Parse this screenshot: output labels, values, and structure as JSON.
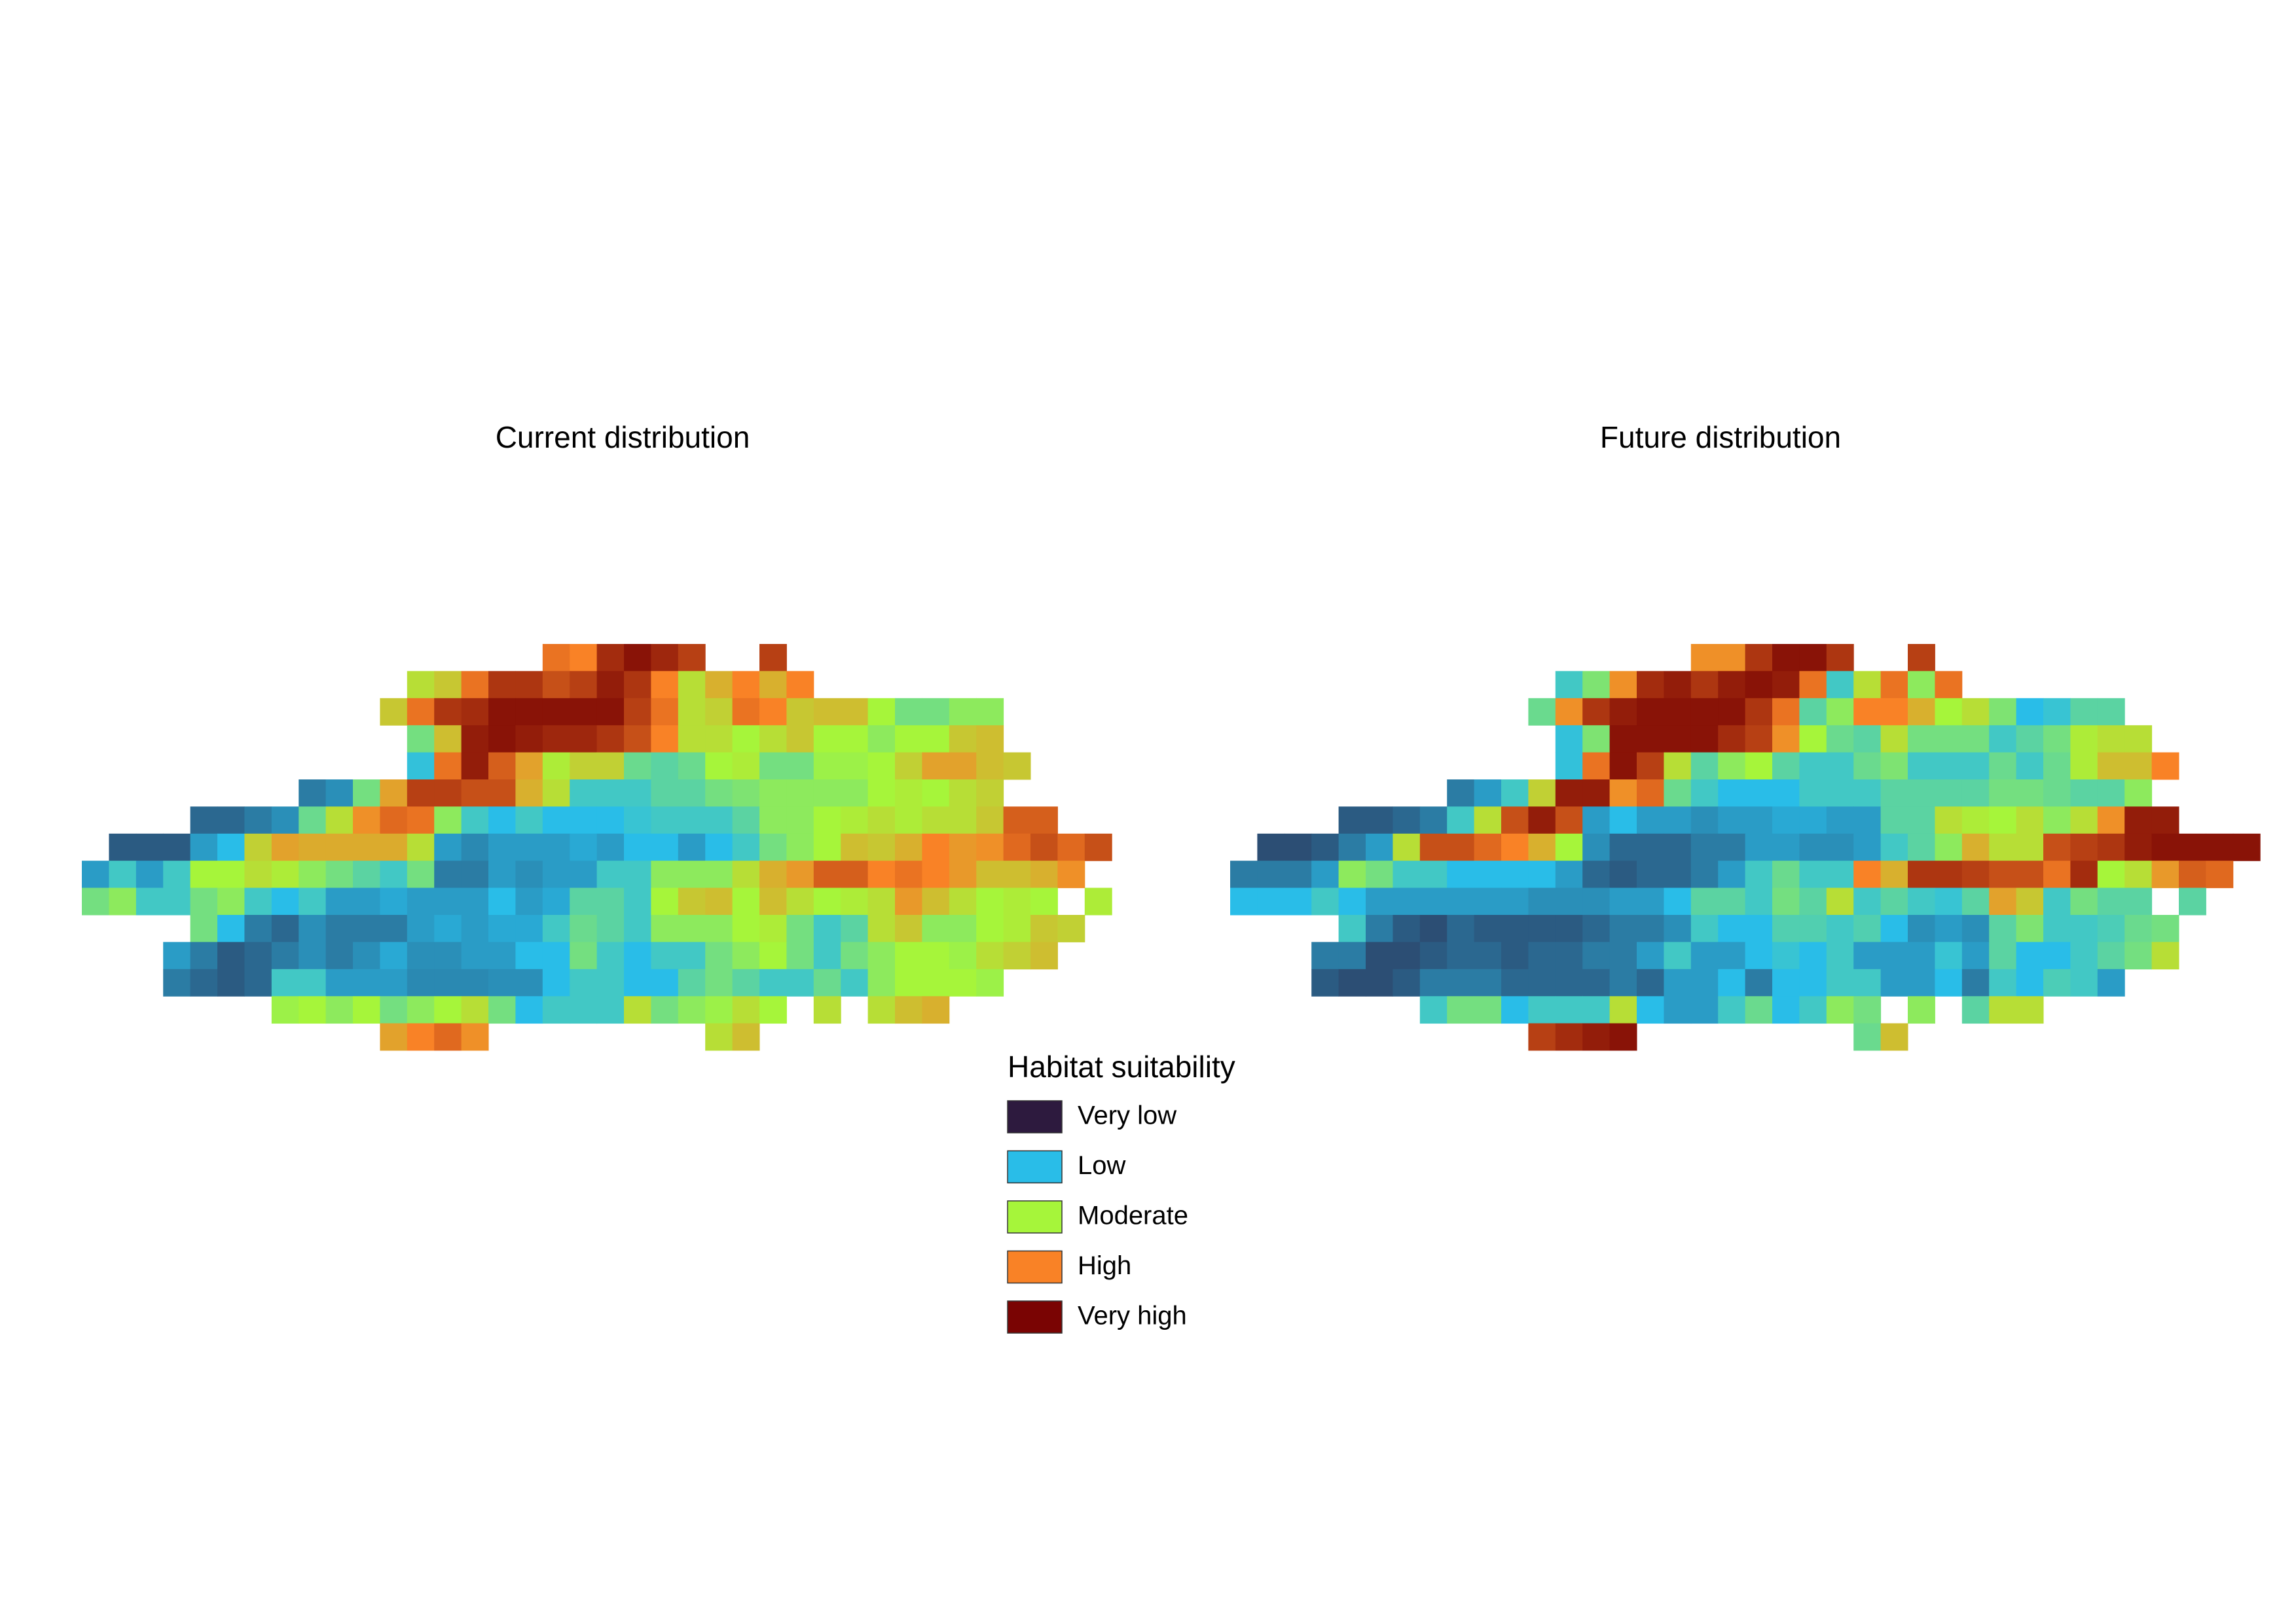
{
  "chart_data": [
    {
      "type": "heatmap",
      "title": "Current distribution",
      "zlim": [
        0,
        1
      ],
      "values": [
        [
          null,
          null,
          null,
          null,
          null,
          null,
          null,
          null,
          null,
          null,
          null,
          null,
          null,
          null,
          null,
          null,
          null,
          0.78,
          0.75,
          0.92,
          0.97,
          0.93,
          0.88,
          null,
          null,
          0.88,
          null,
          null,
          null,
          null,
          null,
          null,
          null,
          null,
          null,
          null,
          null,
          null
        ],
        [
          null,
          null,
          null,
          null,
          null,
          null,
          null,
          null,
          null,
          null,
          null,
          null,
          0.55,
          0.6,
          0.78,
          0.9,
          0.9,
          0.85,
          0.88,
          0.95,
          0.9,
          0.75,
          0.55,
          0.65,
          0.75,
          0.65,
          0.75,
          null,
          null,
          null,
          null,
          null,
          null,
          null,
          null,
          null,
          null,
          null
        ],
        [
          null,
          null,
          null,
          null,
          null,
          null,
          null,
          null,
          null,
          null,
          null,
          0.6,
          0.78,
          0.9,
          0.92,
          0.97,
          0.97,
          0.97,
          0.97,
          0.97,
          0.88,
          0.78,
          0.55,
          0.58,
          0.78,
          0.75,
          0.6,
          0.62,
          0.62,
          0.5,
          0.4,
          0.4,
          0.45,
          0.45,
          null,
          null,
          null,
          null
        ],
        [
          null,
          null,
          null,
          null,
          null,
          null,
          null,
          null,
          null,
          null,
          null,
          null,
          0.4,
          0.62,
          0.95,
          0.97,
          0.95,
          0.93,
          0.93,
          0.9,
          0.85,
          0.75,
          0.55,
          0.55,
          0.5,
          0.55,
          0.6,
          0.5,
          0.5,
          0.45,
          0.5,
          0.5,
          0.6,
          0.62,
          null,
          null,
          null,
          null
        ],
        [
          null,
          null,
          null,
          null,
          null,
          null,
          null,
          null,
          null,
          null,
          null,
          null,
          0.27,
          0.78,
          0.95,
          0.82,
          0.68,
          0.52,
          0.58,
          0.58,
          0.38,
          0.35,
          0.38,
          0.5,
          0.52,
          0.4,
          0.4,
          0.48,
          0.48,
          0.5,
          0.58,
          0.68,
          0.68,
          0.62,
          0.6,
          null,
          null,
          null
        ],
        [
          null,
          null,
          null,
          null,
          null,
          null,
          null,
          null,
          0.15,
          0.18,
          0.4,
          0.68,
          0.88,
          0.88,
          0.85,
          0.85,
          0.65,
          0.55,
          0.3,
          0.3,
          0.3,
          0.35,
          0.35,
          0.4,
          0.42,
          0.45,
          0.45,
          0.45,
          0.45,
          0.5,
          0.52,
          0.5,
          0.55,
          0.58,
          null,
          null,
          null,
          null
        ],
        [
          null,
          null,
          null,
          null,
          0.12,
          0.12,
          0.15,
          0.18,
          0.38,
          0.55,
          0.72,
          0.8,
          0.78,
          0.45,
          0.3,
          0.25,
          0.3,
          0.25,
          0.25,
          0.25,
          0.28,
          0.3,
          0.3,
          0.3,
          0.35,
          0.45,
          0.45,
          0.5,
          0.52,
          0.55,
          0.52,
          0.55,
          0.55,
          0.6,
          0.82,
          0.82,
          null,
          null
        ],
        [
          null,
          0.1,
          0.1,
          0.1,
          0.2,
          0.25,
          0.58,
          0.68,
          0.66,
          0.66,
          0.66,
          0.66,
          0.55,
          0.2,
          0.17,
          0.2,
          0.2,
          0.2,
          0.22,
          0.2,
          0.25,
          0.25,
          0.2,
          0.25,
          0.3,
          0.4,
          0.45,
          0.5,
          0.62,
          0.6,
          0.65,
          0.75,
          0.7,
          0.72,
          0.8,
          0.85,
          0.8,
          0.85
        ],
        [
          0.2,
          0.3,
          0.2,
          0.3,
          0.5,
          0.5,
          0.55,
          0.52,
          0.45,
          0.4,
          0.35,
          0.3,
          0.4,
          0.15,
          0.15,
          0.2,
          0.18,
          0.2,
          0.2,
          0.3,
          0.3,
          0.45,
          0.45,
          0.45,
          0.55,
          0.65,
          0.7,
          0.82,
          0.82,
          0.75,
          0.78,
          0.75,
          0.7,
          0.62,
          0.62,
          0.65,
          0.72,
          null
        ],
        [
          0.4,
          0.45,
          0.3,
          0.3,
          0.4,
          0.45,
          0.3,
          0.25,
          0.3,
          0.2,
          0.2,
          0.22,
          0.2,
          0.2,
          0.2,
          0.25,
          0.2,
          0.22,
          0.35,
          0.35,
          0.3,
          0.5,
          0.6,
          0.62,
          0.5,
          0.62,
          0.55,
          0.5,
          0.52,
          0.55,
          0.7,
          0.62,
          0.55,
          0.5,
          0.52,
          0.5,
          null,
          0.52
        ],
        [
          null,
          null,
          null,
          null,
          0.4,
          0.25,
          0.15,
          0.12,
          0.18,
          0.15,
          0.15,
          0.15,
          0.2,
          0.22,
          0.2,
          0.22,
          0.22,
          0.3,
          0.38,
          0.35,
          0.3,
          0.45,
          0.45,
          0.45,
          0.5,
          0.52,
          0.4,
          0.3,
          0.35,
          0.55,
          0.6,
          0.45,
          0.45,
          0.5,
          0.52,
          0.6,
          0.58,
          null
        ],
        [
          null,
          null,
          null,
          0.2,
          0.15,
          0.1,
          0.12,
          0.15,
          0.18,
          0.15,
          0.18,
          0.22,
          0.18,
          0.18,
          0.2,
          0.2,
          0.25,
          0.25,
          0.4,
          0.3,
          0.25,
          0.3,
          0.3,
          0.4,
          0.45,
          0.5,
          0.4,
          0.3,
          0.4,
          0.45,
          0.5,
          0.5,
          0.48,
          0.55,
          0.58,
          0.62,
          null,
          null
        ],
        [
          null,
          null,
          null,
          0.15,
          0.12,
          0.1,
          0.12,
          0.3,
          0.3,
          0.2,
          0.2,
          0.2,
          0.17,
          0.17,
          0.17,
          0.18,
          0.18,
          0.25,
          0.3,
          0.3,
          0.25,
          0.25,
          0.35,
          0.4,
          0.35,
          0.3,
          0.3,
          0.38,
          0.3,
          0.45,
          0.5,
          0.5,
          0.5,
          0.48,
          null,
          null,
          null,
          null
        ],
        [
          null,
          null,
          null,
          null,
          null,
          null,
          null,
          0.48,
          0.5,
          0.45,
          0.5,
          0.4,
          0.45,
          0.5,
          0.55,
          0.4,
          0.25,
          0.3,
          0.3,
          0.3,
          0.55,
          0.4,
          0.45,
          0.48,
          0.55,
          0.5,
          null,
          0.55,
          null,
          0.55,
          0.62,
          0.65,
          null,
          null,
          null,
          null,
          null,
          null
        ],
        [
          null,
          null,
          null,
          null,
          null,
          null,
          null,
          null,
          null,
          null,
          null,
          0.68,
          0.75,
          0.8,
          0.72,
          null,
          null,
          null,
          null,
          null,
          null,
          null,
          null,
          0.55,
          0.62,
          null,
          null,
          null,
          null,
          null,
          null,
          null,
          null,
          null,
          null,
          null,
          null,
          null
        ]
      ]
    },
    {
      "type": "heatmap",
      "title": "Future distribution",
      "zlim": [
        0,
        1
      ],
      "values": [
        [
          null,
          null,
          null,
          null,
          null,
          null,
          null,
          null,
          null,
          null,
          null,
          null,
          null,
          null,
          null,
          null,
          null,
          0.72,
          0.72,
          0.9,
          0.97,
          0.97,
          0.9,
          null,
          null,
          0.88,
          null,
          null,
          null,
          null,
          null,
          null,
          null,
          null,
          null,
          null,
          null,
          null
        ],
        [
          null,
          null,
          null,
          null,
          null,
          null,
          null,
          null,
          null,
          null,
          null,
          null,
          0.3,
          0.42,
          0.72,
          0.92,
          0.95,
          0.9,
          0.95,
          0.97,
          0.95,
          0.78,
          0.3,
          0.55,
          0.78,
          0.45,
          0.78,
          null,
          null,
          null,
          null,
          null,
          null,
          null,
          null,
          null,
          null,
          null
        ],
        [
          null,
          null,
          null,
          null,
          null,
          null,
          null,
          null,
          null,
          null,
          null,
          0.38,
          0.72,
          0.9,
          0.95,
          0.97,
          0.97,
          0.97,
          0.97,
          0.9,
          0.78,
          0.35,
          0.45,
          0.75,
          0.75,
          0.65,
          0.5,
          0.55,
          0.42,
          0.25,
          0.28,
          0.35,
          0.35,
          null,
          null,
          null,
          null,
          null
        ],
        [
          null,
          null,
          null,
          null,
          null,
          null,
          null,
          null,
          null,
          null,
          null,
          null,
          0.27,
          0.42,
          0.97,
          0.97,
          0.97,
          0.97,
          0.92,
          0.88,
          0.72,
          0.5,
          0.38,
          0.35,
          0.55,
          0.4,
          0.4,
          0.4,
          0.3,
          0.35,
          0.4,
          0.52,
          0.55,
          0.55,
          null,
          null,
          null,
          null
        ],
        [
          null,
          null,
          null,
          null,
          null,
          null,
          null,
          null,
          null,
          null,
          null,
          null,
          0.27,
          0.78,
          0.97,
          0.88,
          0.55,
          0.35,
          0.45,
          0.5,
          0.35,
          0.3,
          0.3,
          0.38,
          0.42,
          0.3,
          0.3,
          0.3,
          0.38,
          0.3,
          0.38,
          0.52,
          0.62,
          0.62,
          0.75,
          null,
          null,
          null
        ],
        [
          null,
          null,
          null,
          null,
          null,
          null,
          null,
          null,
          0.15,
          0.2,
          0.3,
          0.58,
          0.95,
          0.95,
          0.72,
          0.8,
          0.38,
          0.3,
          0.25,
          0.25,
          0.25,
          0.3,
          0.3,
          0.3,
          0.35,
          0.35,
          0.35,
          0.35,
          0.4,
          0.4,
          0.38,
          0.35,
          0.35,
          0.45,
          null,
          null,
          null,
          null
        ],
        [
          null,
          null,
          null,
          null,
          0.1,
          0.1,
          0.12,
          0.15,
          0.3,
          0.55,
          0.85,
          0.95,
          0.85,
          0.2,
          0.25,
          0.2,
          0.2,
          0.18,
          0.2,
          0.2,
          0.22,
          0.22,
          0.2,
          0.2,
          0.35,
          0.35,
          0.55,
          0.52,
          0.5,
          0.55,
          0.45,
          0.55,
          0.72,
          0.95,
          0.95,
          null,
          null,
          null
        ],
        [
          null,
          0.08,
          0.08,
          0.1,
          0.15,
          0.2,
          0.55,
          0.85,
          0.85,
          0.8,
          0.75,
          0.65,
          0.5,
          0.18,
          0.12,
          0.12,
          0.12,
          0.15,
          0.15,
          0.2,
          0.2,
          0.18,
          0.18,
          0.2,
          0.3,
          0.35,
          0.45,
          0.65,
          0.55,
          0.55,
          0.85,
          0.88,
          0.9,
          0.95,
          0.97,
          0.97,
          0.97,
          0.97
        ],
        [
          0.15,
          0.15,
          0.15,
          0.2,
          0.45,
          0.4,
          0.3,
          0.3,
          0.25,
          0.25,
          0.25,
          0.25,
          0.2,
          0.12,
          0.1,
          0.12,
          0.12,
          0.15,
          0.2,
          0.3,
          0.38,
          0.3,
          0.3,
          0.75,
          0.65,
          0.9,
          0.9,
          0.88,
          0.85,
          0.85,
          0.78,
          0.92,
          0.5,
          0.55,
          0.7,
          0.82,
          0.8,
          null
        ],
        [
          0.25,
          0.25,
          0.25,
          0.3,
          0.25,
          0.2,
          0.2,
          0.2,
          0.2,
          0.2,
          0.2,
          0.18,
          0.18,
          0.18,
          0.2,
          0.2,
          0.25,
          0.35,
          0.35,
          0.3,
          0.4,
          0.35,
          0.55,
          0.3,
          0.35,
          0.3,
          0.28,
          0.35,
          0.68,
          0.6,
          0.3,
          0.4,
          0.35,
          0.35,
          null,
          0.35,
          null,
          null
        ],
        [
          null,
          null,
          null,
          null,
          0.3,
          0.15,
          0.1,
          0.08,
          0.12,
          0.1,
          0.1,
          0.1,
          0.1,
          0.12,
          0.15,
          0.15,
          0.18,
          0.3,
          0.25,
          0.25,
          0.33,
          0.33,
          0.3,
          0.33,
          0.25,
          0.18,
          0.2,
          0.18,
          0.35,
          0.42,
          0.3,
          0.3,
          0.32,
          0.38,
          0.4,
          null,
          null,
          null
        ],
        [
          null,
          null,
          null,
          0.15,
          0.15,
          0.08,
          0.08,
          0.1,
          0.12,
          0.12,
          0.1,
          0.12,
          0.12,
          0.15,
          0.15,
          0.2,
          0.3,
          0.2,
          0.2,
          0.25,
          0.28,
          0.25,
          0.3,
          0.2,
          0.2,
          0.2,
          0.28,
          0.2,
          0.35,
          0.25,
          0.25,
          0.3,
          0.35,
          0.4,
          0.55,
          null,
          null,
          null
        ],
        [
          null,
          null,
          null,
          0.1,
          0.08,
          0.08,
          0.1,
          0.15,
          0.15,
          0.15,
          0.12,
          0.12,
          0.12,
          0.12,
          0.15,
          0.12,
          0.2,
          0.2,
          0.25,
          0.15,
          0.25,
          0.25,
          0.3,
          0.3,
          0.2,
          0.2,
          0.25,
          0.15,
          0.3,
          0.25,
          0.32,
          0.3,
          0.2,
          null,
          null,
          null,
          null,
          null
        ],
        [
          null,
          null,
          null,
          null,
          null,
          null,
          null,
          0.3,
          0.4,
          0.4,
          0.25,
          0.3,
          0.3,
          0.3,
          0.55,
          0.25,
          0.2,
          0.2,
          0.3,
          0.38,
          0.25,
          0.3,
          0.45,
          0.4,
          null,
          0.45,
          null,
          0.35,
          0.55,
          0.55,
          null,
          null,
          null,
          null,
          null,
          null,
          null,
          null
        ],
        [
          null,
          null,
          null,
          null,
          null,
          null,
          null,
          null,
          null,
          null,
          null,
          0.88,
          0.92,
          0.95,
          0.97,
          null,
          null,
          null,
          null,
          null,
          null,
          null,
          null,
          0.38,
          0.62,
          null,
          null,
          null,
          null,
          null,
          null,
          null,
          null,
          null,
          null,
          null,
          null,
          null
        ]
      ]
    }
  ],
  "legend": {
    "title": "Habitat suitability",
    "items": [
      {
        "label": "Very low",
        "color": "#2d1a3e"
      },
      {
        "label": "Low",
        "color": "#29bde8"
      },
      {
        "label": "Moderate",
        "color": "#a6f53a"
      },
      {
        "label": "High",
        "color": "#f98226"
      },
      {
        "label": "Very high",
        "color": "#7a0403"
      }
    ]
  }
}
